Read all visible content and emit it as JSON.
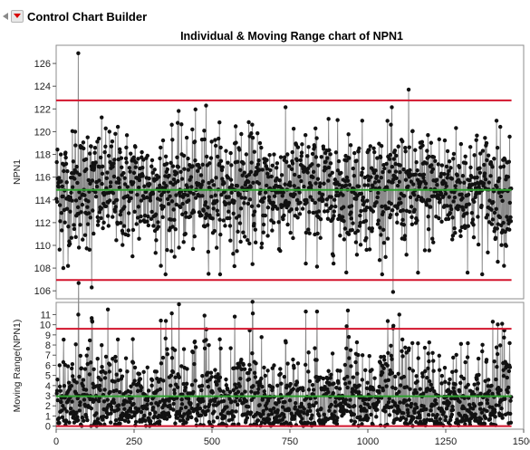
{
  "app_title": "Control Chart Builder",
  "chart_data": [
    {
      "type": "line",
      "title": "Individual & Moving Range chart of NPN1",
      "ylabel": "NPN1",
      "ylim": [
        105.3,
        127.6
      ],
      "yticks": [
        106,
        108,
        110,
        112,
        114,
        116,
        118,
        120,
        122,
        124,
        126
      ],
      "xlim": [
        0,
        1500
      ],
      "n_points": 1460,
      "limits": {
        "ucl": 122.75,
        "center": 114.88,
        "lcl": 106.95
      },
      "notable_points": [
        {
          "x": 5,
          "y": 115.2
        },
        {
          "x": 14,
          "y": 118.0
        },
        {
          "x": 22,
          "y": 108.0
        },
        {
          "x": 40,
          "y": 110.0
        },
        {
          "x": 60,
          "y": 120.0
        },
        {
          "x": 70,
          "y": 126.9
        },
        {
          "x": 100,
          "y": 119.5
        },
        {
          "x": 113,
          "y": 106.3
        },
        {
          "x": 170,
          "y": 120.0
        },
        {
          "x": 335,
          "y": 108.2
        },
        {
          "x": 480,
          "y": 122.3
        },
        {
          "x": 800,
          "y": 108.4
        },
        {
          "x": 1080,
          "y": 105.9
        },
        {
          "x": 1130,
          "y": 123.7
        },
        {
          "x": 1160,
          "y": 107.6
        },
        {
          "x": 1460,
          "y": 115.0
        }
      ]
    },
    {
      "type": "line",
      "ylabel": "Moving Range(NPN1)",
      "ylim": [
        -0.3,
        12.2
      ],
      "yticks": [
        0,
        1,
        2,
        3,
        4,
        5,
        6,
        7,
        8,
        9,
        10,
        11
      ],
      "xlim": [
        0,
        1500
      ],
      "xticks": [
        0,
        250,
        500,
        750,
        1000,
        1250,
        1500
      ],
      "limits": {
        "ucl": 9.6,
        "center": 2.95,
        "lcl": 0
      },
      "notable_points": [
        {
          "x": 70,
          "y": 11.0
        },
        {
          "x": 115,
          "y": 10.3
        },
        {
          "x": 165,
          "y": 11.5
        },
        {
          "x": 475,
          "y": 10.9
        },
        {
          "x": 935,
          "y": 11.4
        },
        {
          "x": 1100,
          "y": 11.0
        },
        {
          "x": 1400,
          "y": 10.3
        },
        {
          "x": 1430,
          "y": 10.1
        }
      ]
    }
  ]
}
